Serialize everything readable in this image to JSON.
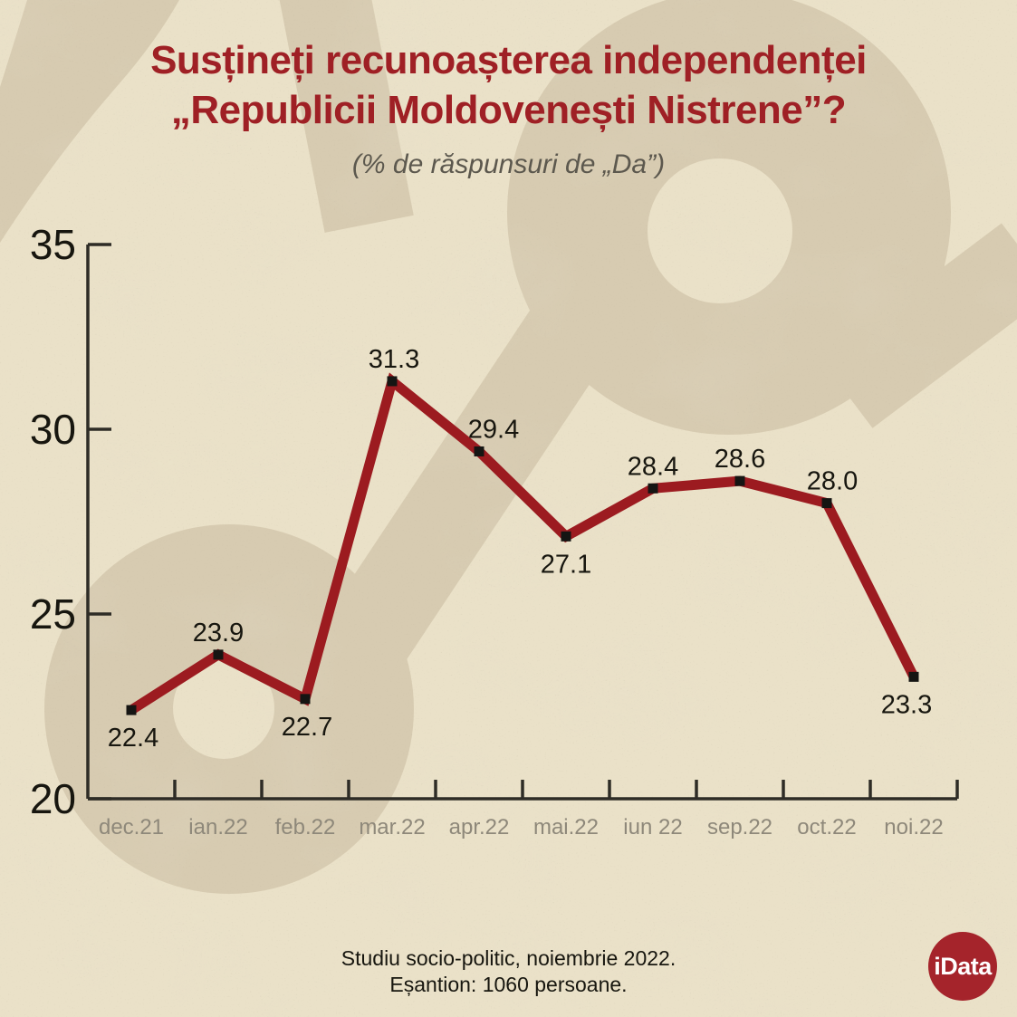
{
  "palette": {
    "background": "#eae1c8",
    "watermark": "#d7cbb1",
    "title_red": "#9f2025",
    "line_red": "#9c1b20",
    "logo_red": "#a5242b",
    "text_dark": "#17160f",
    "axis_color": "#2e2c26",
    "xlabel_gray": "#8e887a",
    "subtitle_gray": "#5c584e",
    "marker_black": "#151513"
  },
  "header": {
    "title_line1": "Susțineți recunoașterea independenței",
    "title_line2": "„Republicii Moldovenești Nistrene”?",
    "subtitle": "(% de răspunsuri de „Da”)"
  },
  "chart_data": {
    "type": "line",
    "title": "Susțineți recunoașterea independenței „Republicii Moldovenești Nistrene”? (% de răspunsuri de „Da”)",
    "categories": [
      "dec.21",
      "ian.22",
      "feb.22",
      "mar.22",
      "apr.22",
      "mai.22",
      "iun 22",
      "sep.22",
      "oct.22",
      "noi.22"
    ],
    "values": [
      22.4,
      23.9,
      22.7,
      31.3,
      29.4,
      27.1,
      28.4,
      28.6,
      28.0,
      23.3
    ],
    "label_side": [
      "below",
      "above",
      "below",
      "above",
      "above",
      "below",
      "above",
      "above",
      "above",
      "below"
    ],
    "label_dx": [
      2,
      0,
      2,
      2,
      16,
      0,
      0,
      0,
      6,
      -8
    ],
    "xlabel": "",
    "ylabel": "",
    "ylim": [
      20,
      35
    ],
    "yticks": [
      20,
      25,
      30,
      35
    ],
    "grid": false,
    "legend": "none",
    "line_color": "#9c1b20",
    "line_width": 11,
    "marker": "square",
    "marker_color": "#151513"
  },
  "footer": {
    "line1": "Studiu socio-politic, noiembrie 2022.",
    "line2": "Eșantion: 1060 persoane."
  },
  "logo": {
    "text": "iData"
  }
}
